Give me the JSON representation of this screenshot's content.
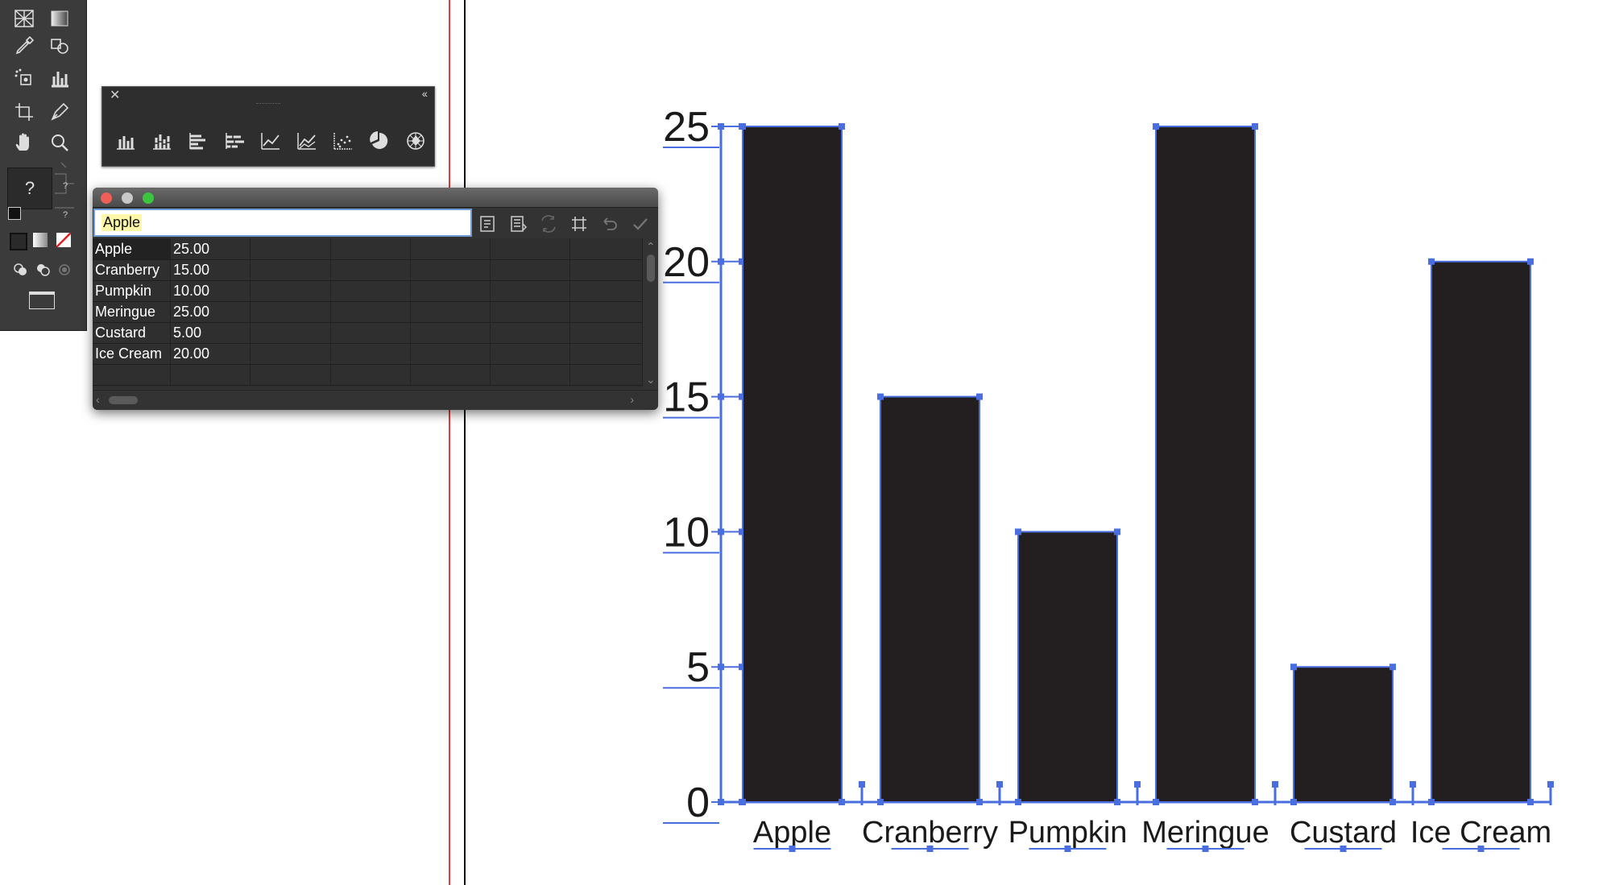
{
  "toolbar": {
    "tools": [
      "perspective-grid-icon",
      "gradient-icon",
      "eyedropper-icon",
      "live-paint-icon",
      "symbol-sprayer-icon",
      "column-graph-icon",
      "artboard-icon",
      "slice-icon",
      "hand-icon",
      "zoom-icon"
    ],
    "help_glyph": "?"
  },
  "graph_panel": {
    "close_glyph": "✕",
    "collapse_glyph": "‹‹",
    "types": [
      "column-graph-icon",
      "stacked-column-graph-icon",
      "bar-graph-icon",
      "stacked-bar-graph-icon",
      "line-graph-icon",
      "area-graph-icon",
      "scatter-graph-icon",
      "pie-graph-icon",
      "radar-graph-icon"
    ]
  },
  "data_window": {
    "entry_value": "Apple",
    "buttons": [
      "import-data-icon",
      "transpose-row-column-icon",
      "switch-xy-icon",
      "cell-style-icon",
      "revert-icon",
      "apply-icon"
    ],
    "rows": [
      [
        "Apple",
        "25.00"
      ],
      [
        "Cranberry",
        "15.00"
      ],
      [
        "Pumpkin",
        "10.00"
      ],
      [
        "Meringue",
        "25.00"
      ],
      [
        "Custard",
        "5.00"
      ],
      [
        "Ice Cream",
        "20.00"
      ]
    ],
    "colors": {
      "close": "#ed5f57",
      "minimize": "#c8c8c8",
      "maximize": "#3ec540"
    }
  },
  "chart_data": {
    "type": "bar",
    "categories": [
      "Apple",
      "Cranberry",
      "Pumpkin",
      "Meringue",
      "Custard",
      "Ice Cream"
    ],
    "values": [
      25,
      15,
      10,
      25,
      5,
      20
    ],
    "ylim": [
      0,
      25
    ],
    "yticks": [
      "0",
      "5",
      "10",
      "15",
      "20",
      "25"
    ],
    "bar_color": "#231f20",
    "selection_color": "#4a6ee0",
    "grid": false,
    "title": "",
    "xlabel": "",
    "ylabel": ""
  }
}
